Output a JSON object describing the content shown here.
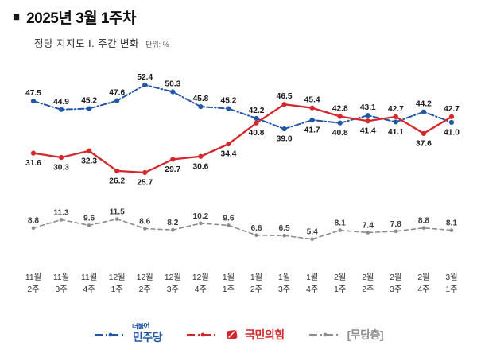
{
  "header": {
    "bullet": "■",
    "title": "2025년 3월 1주차",
    "subtitle": "정당 지지도 Ⅰ. 주간 변화",
    "unit": "단위: %"
  },
  "chart_data": {
    "type": "line",
    "title": "정당 지지도 Ⅰ. 주간 변화",
    "unit": "%",
    "ylim": [
      0,
      58
    ],
    "grid": false,
    "legend_position": "bottom",
    "categories": [
      "11월 2주",
      "11월 3주",
      "11월 4주",
      "12월 1주",
      "12월 2주",
      "12월 3주",
      "12월 4주",
      "1월 1주",
      "1월 2주",
      "1월 3주",
      "1월 4주",
      "2월 1주",
      "2월 2주",
      "2월 3주",
      "2월 4주",
      "3월 1주"
    ],
    "series": [
      {
        "key": "democratic-party",
        "name": "민주당",
        "color": "#2257a7",
        "values": [
          47.5,
          44.9,
          45.2,
          47.6,
          52.4,
          50.3,
          45.8,
          45.2,
          42.2,
          39.0,
          41.7,
          40.8,
          43.1,
          41.1,
          44.2,
          41.0
        ]
      },
      {
        "key": "people-power-party",
        "name": "국민의힘",
        "color": "#d5262c",
        "values": [
          31.6,
          30.3,
          32.3,
          26.2,
          25.7,
          29.7,
          30.6,
          34.4,
          40.8,
          46.5,
          45.4,
          42.8,
          41.4,
          42.7,
          37.6,
          42.7
        ]
      },
      {
        "key": "unaffiliated",
        "name": "무당층",
        "color": "#8c8c8c",
        "values": [
          8.8,
          11.3,
          9.6,
          11.5,
          8.6,
          8.2,
          10.2,
          9.6,
          6.6,
          6.5,
          5.4,
          8.1,
          7.4,
          7.8,
          8.8,
          8.1
        ]
      }
    ]
  },
  "legend": {
    "items": [
      {
        "sub": "더불어",
        "label": "민주당"
      },
      {
        "label": "국민의힘"
      },
      {
        "label": "[무당층]"
      }
    ]
  }
}
